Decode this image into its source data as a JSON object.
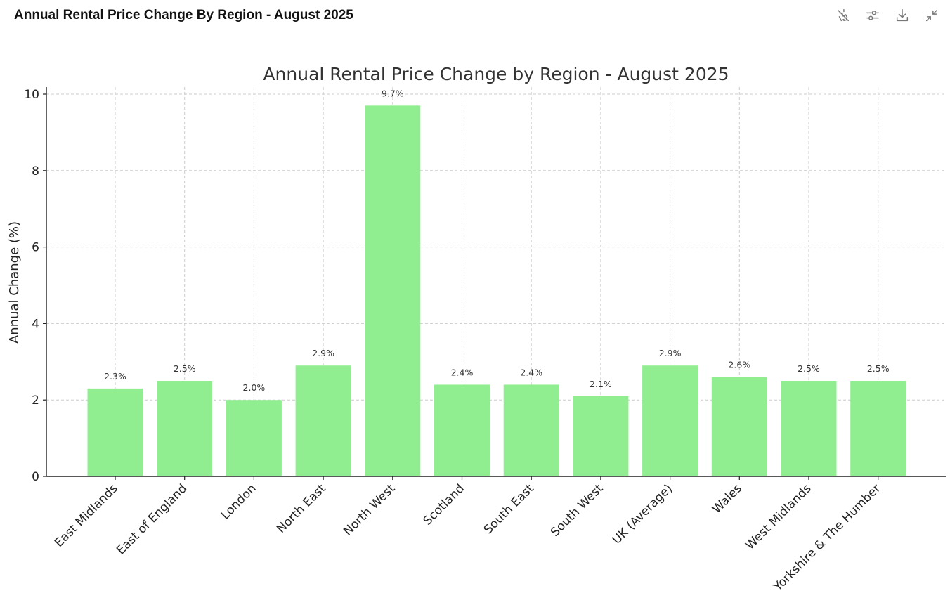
{
  "header": {
    "title": "Annual Rental Price Change By Region - August 2025",
    "toolbar": [
      {
        "name": "interactive-toggle-icon"
      },
      {
        "name": "adjust-icon"
      },
      {
        "name": "download-icon"
      },
      {
        "name": "collapse-icon"
      }
    ]
  },
  "chart_data": {
    "type": "bar",
    "title": "Annual Rental Price Change by Region - August 2025",
    "xlabel": "",
    "ylabel": "Annual Change (%)",
    "ylim": [
      0,
      10
    ],
    "yticks": [
      0,
      2,
      4,
      6,
      8,
      10
    ],
    "grid": true,
    "bar_color": "#90ee90",
    "categories": [
      "East Midlands",
      "East of England",
      "London",
      "North East",
      "North West",
      "Scotland",
      "South East",
      "South West",
      "UK (Average)",
      "Wales",
      "West Midlands",
      "Yorkshire & The Humber"
    ],
    "values": [
      2.3,
      2.5,
      2.0,
      2.9,
      9.7,
      2.4,
      2.4,
      2.1,
      2.9,
      2.6,
      2.5,
      2.5
    ],
    "data_labels": [
      "2.3%",
      "2.5%",
      "2.0%",
      "2.9%",
      "9.7%",
      "2.4%",
      "2.4%",
      "2.1%",
      "2.9%",
      "2.6%",
      "2.5%",
      "2.5%"
    ]
  }
}
